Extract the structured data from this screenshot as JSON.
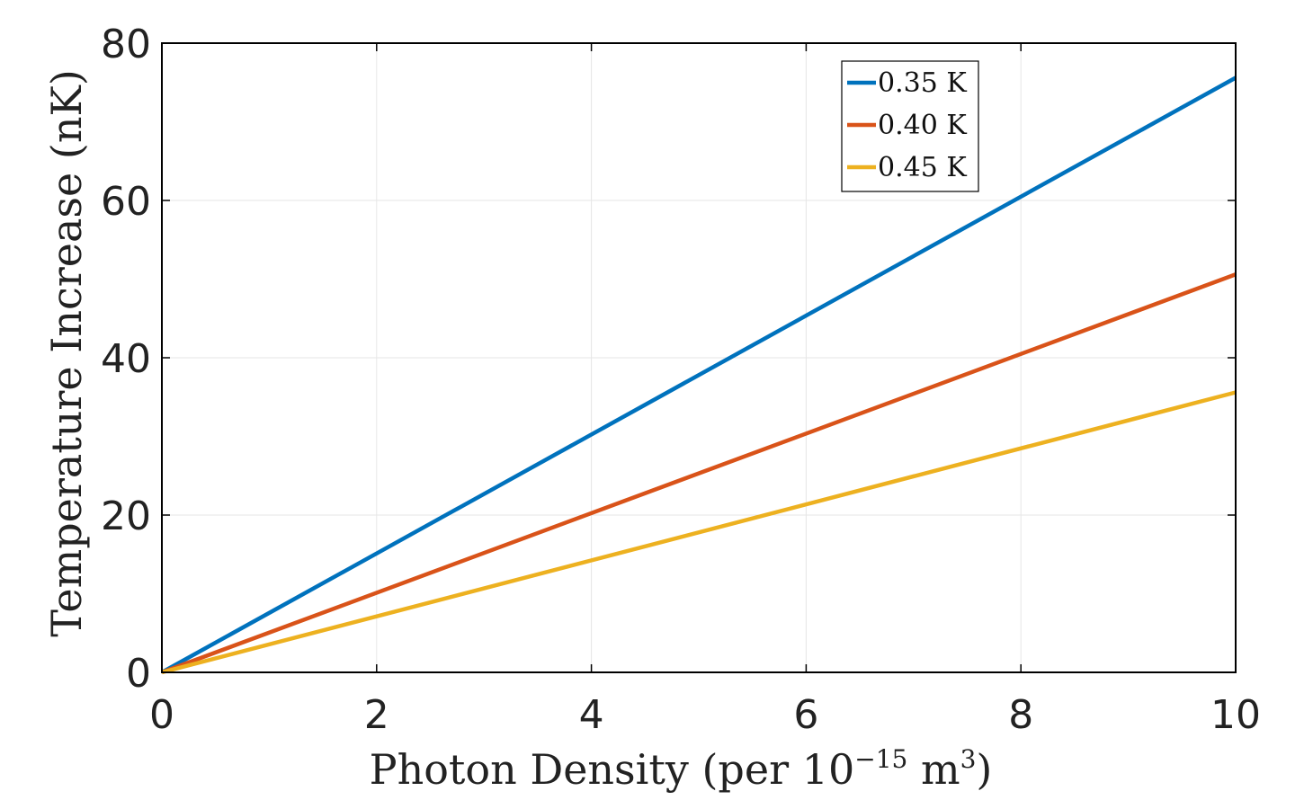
{
  "chart_data": {
    "type": "line",
    "title": "",
    "xlabel_main": "Photon Density (per 10",
    "xlabel_exp": "−15",
    "xlabel_unit": " m",
    "xlabel_unit_exp": "3",
    "xlabel_close": ")",
    "ylabel": "Temperature Increase (nK)",
    "xlim": [
      0,
      10
    ],
    "ylim": [
      0,
      80
    ],
    "xticks": [
      0,
      2,
      4,
      6,
      8,
      10
    ],
    "yticks": [
      0,
      20,
      40,
      60,
      80
    ],
    "grid": true,
    "legend_position": "top-right",
    "series": [
      {
        "name": "0.35 K",
        "color": "#0072BD",
        "x": [
          0,
          10
        ],
        "values": [
          0,
          75.6
        ]
      },
      {
        "name": "0.40 K",
        "color": "#D95319",
        "x": [
          0,
          10
        ],
        "values": [
          0,
          50.6
        ]
      },
      {
        "name": "0.45 K",
        "color": "#EDB120",
        "x": [
          0,
          10
        ],
        "values": [
          0,
          35.6
        ]
      }
    ]
  }
}
